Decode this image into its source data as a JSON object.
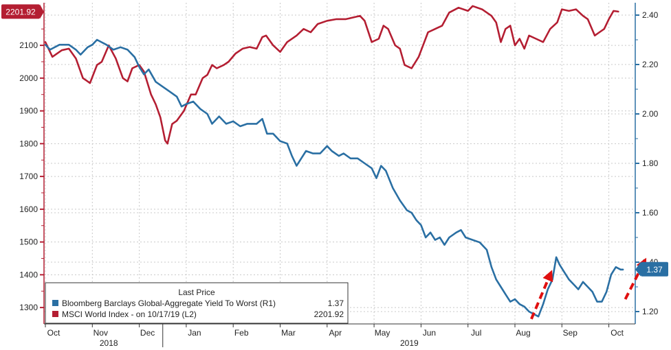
{
  "chart_data": {
    "type": "line",
    "colors": {
      "left": "#b41e32",
      "right": "#2a6fa3",
      "arrow": "#e01010",
      "grid": "#c8c8c8"
    },
    "left_axis": {
      "ylim": [
        1250,
        2230
      ],
      "ticks": [
        "1300",
        "1400",
        "1500",
        "1600",
        "1700",
        "1800",
        "1900",
        "2000",
        "2100"
      ]
    },
    "right_axis": {
      "ylim": [
        1.15,
        2.45
      ],
      "ticks": [
        "1.20",
        "1.40",
        "1.60",
        "1.80",
        "2.00",
        "2.20",
        "2.40"
      ]
    },
    "x_months": [
      "Oct",
      "Nov",
      "Dec",
      "Jan",
      "Feb",
      "Mar",
      "Apr",
      "May",
      "Jun",
      "Jul",
      "Aug",
      "Sep",
      "Oct"
    ],
    "x_years": [
      "2018",
      "2019"
    ],
    "last_value_badges": {
      "left": "2201.92",
      "right": "1.37"
    },
    "legend": {
      "title": "Last Price",
      "entries": [
        {
          "name": "Bloomberg Barclays Global-Aggregate Yield To Worst  (R1)",
          "value": "1.37"
        },
        {
          "name": "MSCI World Index -  on 10/17/19  (L2)",
          "value": "2201.92"
        }
      ]
    },
    "series": [
      {
        "name": "MSCI World Index -  on 10/17/19  (L2)",
        "axis": "left",
        "points": [
          [
            0.0,
            2110
          ],
          [
            0.15,
            2065
          ],
          [
            0.35,
            2085
          ],
          [
            0.5,
            2090
          ],
          [
            0.65,
            2060
          ],
          [
            0.8,
            2000
          ],
          [
            0.95,
            1985
          ],
          [
            1.1,
            2040
          ],
          [
            1.2,
            2050
          ],
          [
            1.35,
            2100
          ],
          [
            1.5,
            2060
          ],
          [
            1.65,
            2000
          ],
          [
            1.75,
            1990
          ],
          [
            1.85,
            2030
          ],
          [
            2.0,
            2040
          ],
          [
            2.1,
            2020
          ],
          [
            2.25,
            1950
          ],
          [
            2.35,
            1920
          ],
          [
            2.45,
            1880
          ],
          [
            2.55,
            1810
          ],
          [
            2.6,
            1800
          ],
          [
            2.7,
            1860
          ],
          [
            2.8,
            1870
          ],
          [
            2.95,
            1900
          ],
          [
            3.1,
            1950
          ],
          [
            3.2,
            1950
          ],
          [
            3.35,
            2000
          ],
          [
            3.45,
            2010
          ],
          [
            3.55,
            2040
          ],
          [
            3.65,
            2030
          ],
          [
            3.8,
            2040
          ],
          [
            3.9,
            2050
          ],
          [
            4.05,
            2075
          ],
          [
            4.2,
            2090
          ],
          [
            4.35,
            2095
          ],
          [
            4.5,
            2090
          ],
          [
            4.62,
            2125
          ],
          [
            4.7,
            2130
          ],
          [
            4.85,
            2100
          ],
          [
            5.0,
            2080
          ],
          [
            5.15,
            2110
          ],
          [
            5.35,
            2130
          ],
          [
            5.5,
            2150
          ],
          [
            5.65,
            2140
          ],
          [
            5.8,
            2165
          ],
          [
            6.0,
            2175
          ],
          [
            6.2,
            2180
          ],
          [
            6.4,
            2180
          ],
          [
            6.55,
            2185
          ],
          [
            6.7,
            2190
          ],
          [
            6.8,
            2175
          ],
          [
            6.95,
            2110
          ],
          [
            7.1,
            2120
          ],
          [
            7.2,
            2160
          ],
          [
            7.3,
            2150
          ],
          [
            7.45,
            2100
          ],
          [
            7.55,
            2090
          ],
          [
            7.65,
            2040
          ],
          [
            7.8,
            2030
          ],
          [
            7.95,
            2065
          ],
          [
            8.15,
            2140
          ],
          [
            8.3,
            2150
          ],
          [
            8.45,
            2160
          ],
          [
            8.6,
            2200
          ],
          [
            8.8,
            2215
          ],
          [
            9.0,
            2205
          ],
          [
            9.1,
            2220
          ],
          [
            9.3,
            2210
          ],
          [
            9.5,
            2190
          ],
          [
            9.6,
            2170
          ],
          [
            9.7,
            2110
          ],
          [
            9.8,
            2150
          ],
          [
            9.9,
            2160
          ],
          [
            10.0,
            2100
          ],
          [
            10.1,
            2120
          ],
          [
            10.2,
            2090
          ],
          [
            10.3,
            2130
          ],
          [
            10.45,
            2120
          ],
          [
            10.6,
            2110
          ],
          [
            10.75,
            2150
          ],
          [
            10.9,
            2170
          ],
          [
            11.0,
            2210
          ],
          [
            11.15,
            2205
          ],
          [
            11.3,
            2210
          ],
          [
            11.45,
            2190
          ],
          [
            11.55,
            2180
          ],
          [
            11.7,
            2130
          ],
          [
            11.8,
            2140
          ],
          [
            11.9,
            2150
          ],
          [
            12.0,
            2180
          ],
          [
            12.1,
            2205
          ],
          [
            12.2,
            2203
          ]
        ]
      },
      {
        "name": "Bloomberg Barclays Global-Aggregate Yield To Worst  (R1)",
        "axis": "right",
        "points": [
          [
            0.0,
            2.28
          ],
          [
            0.1,
            2.26
          ],
          [
            0.3,
            2.28
          ],
          [
            0.5,
            2.28
          ],
          [
            0.65,
            2.26
          ],
          [
            0.75,
            2.24
          ],
          [
            0.9,
            2.27
          ],
          [
            1.0,
            2.28
          ],
          [
            1.1,
            2.3
          ],
          [
            1.2,
            2.29
          ],
          [
            1.3,
            2.28
          ],
          [
            1.45,
            2.26
          ],
          [
            1.6,
            2.27
          ],
          [
            1.75,
            2.26
          ],
          [
            1.9,
            2.23
          ],
          [
            2.0,
            2.19
          ],
          [
            2.1,
            2.16
          ],
          [
            2.2,
            2.18
          ],
          [
            2.35,
            2.13
          ],
          [
            2.5,
            2.11
          ],
          [
            2.65,
            2.09
          ],
          [
            2.8,
            2.07
          ],
          [
            2.9,
            2.03
          ],
          [
            3.0,
            2.04
          ],
          [
            3.15,
            2.05
          ],
          [
            3.3,
            2.02
          ],
          [
            3.45,
            2.0
          ],
          [
            3.55,
            1.96
          ],
          [
            3.7,
            1.99
          ],
          [
            3.85,
            1.96
          ],
          [
            4.0,
            1.97
          ],
          [
            4.15,
            1.95
          ],
          [
            4.3,
            1.96
          ],
          [
            4.5,
            1.96
          ],
          [
            4.62,
            1.98
          ],
          [
            4.72,
            1.92
          ],
          [
            4.85,
            1.92
          ],
          [
            5.0,
            1.89
          ],
          [
            5.15,
            1.88
          ],
          [
            5.25,
            1.83
          ],
          [
            5.35,
            1.79
          ],
          [
            5.45,
            1.82
          ],
          [
            5.55,
            1.85
          ],
          [
            5.7,
            1.84
          ],
          [
            5.85,
            1.84
          ],
          [
            6.0,
            1.87
          ],
          [
            6.1,
            1.85
          ],
          [
            6.25,
            1.83
          ],
          [
            6.35,
            1.84
          ],
          [
            6.5,
            1.82
          ],
          [
            6.65,
            1.82
          ],
          [
            6.8,
            1.8
          ],
          [
            6.95,
            1.78
          ],
          [
            7.05,
            1.74
          ],
          [
            7.15,
            1.79
          ],
          [
            7.25,
            1.77
          ],
          [
            7.4,
            1.7
          ],
          [
            7.55,
            1.65
          ],
          [
            7.7,
            1.61
          ],
          [
            7.8,
            1.6
          ],
          [
            7.9,
            1.57
          ],
          [
            8.0,
            1.55
          ],
          [
            8.1,
            1.5
          ],
          [
            8.2,
            1.52
          ],
          [
            8.3,
            1.49
          ],
          [
            8.4,
            1.5
          ],
          [
            8.5,
            1.47
          ],
          [
            8.6,
            1.5
          ],
          [
            8.75,
            1.52
          ],
          [
            8.85,
            1.53
          ],
          [
            8.95,
            1.5
          ],
          [
            9.1,
            1.49
          ],
          [
            9.25,
            1.48
          ],
          [
            9.4,
            1.45
          ],
          [
            9.5,
            1.38
          ],
          [
            9.6,
            1.33
          ],
          [
            9.7,
            1.3
          ],
          [
            9.8,
            1.27
          ],
          [
            9.9,
            1.24
          ],
          [
            10.0,
            1.25
          ],
          [
            10.1,
            1.23
          ],
          [
            10.2,
            1.22
          ],
          [
            10.3,
            1.2
          ],
          [
            10.4,
            1.19
          ],
          [
            10.5,
            1.18
          ],
          [
            10.6,
            1.23
          ],
          [
            10.7,
            1.29
          ],
          [
            10.8,
            1.33
          ],
          [
            10.88,
            1.42
          ],
          [
            10.95,
            1.39
          ],
          [
            11.05,
            1.36
          ],
          [
            11.15,
            1.33
          ],
          [
            11.25,
            1.31
          ],
          [
            11.35,
            1.29
          ],
          [
            11.45,
            1.32
          ],
          [
            11.55,
            1.3
          ],
          [
            11.65,
            1.28
          ],
          [
            11.75,
            1.24
          ],
          [
            11.85,
            1.24
          ],
          [
            11.95,
            1.28
          ],
          [
            12.05,
            1.35
          ],
          [
            12.15,
            1.38
          ],
          [
            12.25,
            1.37
          ],
          [
            12.3,
            1.37
          ]
        ]
      }
    ],
    "annotations": [
      {
        "type": "arrow",
        "from": [
          10.35,
          1.17
        ],
        "to": [
          10.75,
          1.35
        ]
      },
      {
        "type": "arrow",
        "from": [
          12.35,
          1.25
        ],
        "to": [
          12.75,
          1.4
        ]
      }
    ]
  }
}
